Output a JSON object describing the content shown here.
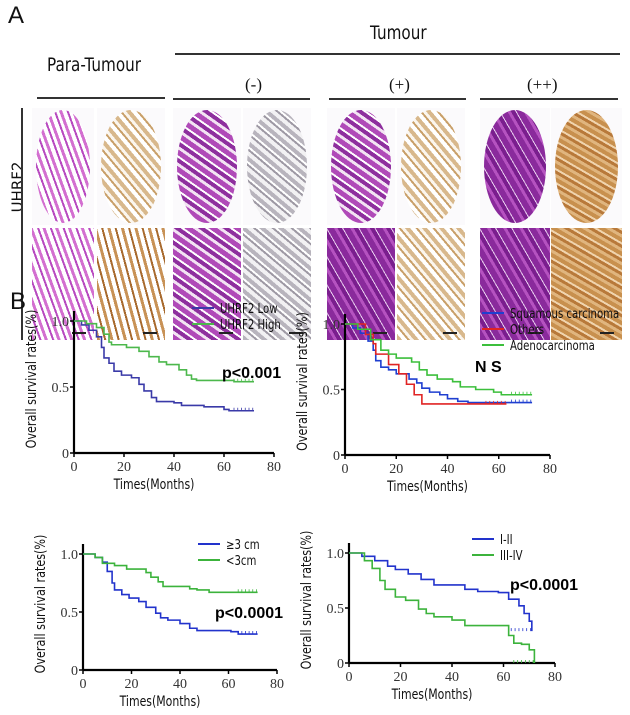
{
  "panel_a": {
    "letter": "A",
    "tumour_label": "Tumour",
    "para_tumour_label": "Para-Tumour",
    "groups": [
      "(-)",
      "(+)",
      "(++)"
    ],
    "row_label": "UHRF2",
    "colors": {
      "he_stain": "#a33fb0",
      "ihc_stain": "#c8975c"
    }
  },
  "panel_b": {
    "letter": "B"
  },
  "chart_data": [
    {
      "type": "line",
      "xlabel": "Times(Months)",
      "ylabel": "Overall survival rates(%)",
      "xlim": [
        0,
        80
      ],
      "ylim": [
        0,
        1.0
      ],
      "xticks": [
        "0",
        "20",
        "40",
        "60",
        "80"
      ],
      "yticks": [
        "0",
        "0.5",
        "1.0"
      ],
      "annotation": "p<0.001",
      "legend": "top-right",
      "series": [
        {
          "name": "UHRF2  Low",
          "color": "#3a3aa8",
          "points": [
            [
              0,
              1
            ],
            [
              3,
              0.97
            ],
            [
              6,
              0.93
            ],
            [
              9,
              0.88
            ],
            [
              11,
              0.8
            ],
            [
              12,
              0.72
            ],
            [
              14,
              0.68
            ],
            [
              16,
              0.62
            ],
            [
              19,
              0.59
            ],
            [
              23,
              0.57
            ],
            [
              26,
              0.52
            ],
            [
              28,
              0.47
            ],
            [
              31,
              0.42
            ],
            [
              33,
              0.39
            ],
            [
              40,
              0.38
            ],
            [
              43,
              0.36
            ],
            [
              52,
              0.35
            ],
            [
              60,
              0.33
            ],
            [
              62,
              0.32
            ],
            [
              72,
              0.32
            ]
          ]
        },
        {
          "name": "UHRF2  High",
          "color": "#4cb84c",
          "points": [
            [
              0,
              1
            ],
            [
              5,
              0.98
            ],
            [
              9,
              0.95
            ],
            [
              12,
              0.9
            ],
            [
              14,
              0.84
            ],
            [
              15,
              0.82
            ],
            [
              21,
              0.8
            ],
            [
              26,
              0.77
            ],
            [
              30,
              0.73
            ],
            [
              34,
              0.69
            ],
            [
              37,
              0.67
            ],
            [
              42,
              0.63
            ],
            [
              45,
              0.59
            ],
            [
              47,
              0.56
            ],
            [
              49,
              0.55
            ],
            [
              64,
              0.54
            ],
            [
              72,
              0.54
            ]
          ]
        }
      ]
    },
    {
      "type": "line",
      "xlabel": "Times(Months)",
      "ylabel": "Overall survival rates(%)",
      "xlim": [
        0,
        80
      ],
      "ylim": [
        0,
        1.0
      ],
      "xticks": [
        "0",
        "20",
        "40",
        "60",
        "80"
      ],
      "yticks": [
        "0",
        "0.5",
        "1.0"
      ],
      "annotation": "N S",
      "legend": "top-right",
      "series": [
        {
          "name": "Squamous carcinoma",
          "color": "#1f3fd0",
          "points": [
            [
              0,
              1
            ],
            [
              3,
              0.97
            ],
            [
              6,
              0.93
            ],
            [
              9,
              0.87
            ],
            [
              11,
              0.8
            ],
            [
              12,
              0.72
            ],
            [
              14,
              0.67
            ],
            [
              17,
              0.65
            ],
            [
              20,
              0.62
            ],
            [
              25,
              0.58
            ],
            [
              28,
              0.55
            ],
            [
              30,
              0.51
            ],
            [
              33,
              0.48
            ],
            [
              37,
              0.46
            ],
            [
              40,
              0.43
            ],
            [
              44,
              0.41
            ],
            [
              48,
              0.4
            ],
            [
              73,
              0.4
            ]
          ]
        },
        {
          "name": "Others",
          "color": "#e02424",
          "points": [
            [
              0,
              1
            ],
            [
              8,
              0.92
            ],
            [
              11,
              0.85
            ],
            [
              12,
              0.77
            ],
            [
              17,
              0.69
            ],
            [
              21,
              0.62
            ],
            [
              24,
              0.54
            ],
            [
              27,
              0.46
            ],
            [
              30,
              0.39
            ],
            [
              63,
              0.39
            ]
          ]
        },
        {
          "name": "Adenocarcinoma",
          "color": "#3cbf3c",
          "points": [
            [
              0,
              1
            ],
            [
              5,
              0.96
            ],
            [
              10,
              0.88
            ],
            [
              14,
              0.8
            ],
            [
              17,
              0.77
            ],
            [
              20,
              0.74
            ],
            [
              26,
              0.71
            ],
            [
              29,
              0.65
            ],
            [
              32,
              0.61
            ],
            [
              36,
              0.58
            ],
            [
              42,
              0.56
            ],
            [
              45,
              0.52
            ],
            [
              51,
              0.5
            ],
            [
              58,
              0.48
            ],
            [
              61,
              0.46
            ],
            [
              73,
              0.46
            ]
          ]
        }
      ]
    },
    {
      "type": "line",
      "xlabel": "Times(Months)",
      "ylabel": "Overall survival rates(%)",
      "xlim": [
        0,
        80
      ],
      "ylim": [
        0,
        1.0
      ],
      "xticks": [
        "0",
        "20",
        "40",
        "60",
        "80"
      ],
      "yticks": [
        "0",
        "0.5",
        "1.0"
      ],
      "annotation": "p<0.0001",
      "legend": "top-right",
      "series": [
        {
          "name": "≥3 cm",
          "color": "#2233cc",
          "points": [
            [
              0,
              1
            ],
            [
              5,
              0.97
            ],
            [
              8,
              0.93
            ],
            [
              10,
              0.85
            ],
            [
              12,
              0.75
            ],
            [
              13,
              0.69
            ],
            [
              16,
              0.65
            ],
            [
              19,
              0.62
            ],
            [
              23,
              0.59
            ],
            [
              26,
              0.54
            ],
            [
              30,
              0.49
            ],
            [
              32,
              0.45
            ],
            [
              35,
              0.43
            ],
            [
              40,
              0.4
            ],
            [
              44,
              0.36
            ],
            [
              47,
              0.34
            ],
            [
              59,
              0.34
            ],
            [
              61,
              0.33
            ],
            [
              64,
              0.31
            ],
            [
              72,
              0.31
            ]
          ]
        },
        {
          "name": "<3cm",
          "color": "#3cb33c",
          "points": [
            [
              0,
              1
            ],
            [
              5,
              0.97
            ],
            [
              8,
              0.92
            ],
            [
              13,
              0.9
            ],
            [
              18,
              0.87
            ],
            [
              26,
              0.84
            ],
            [
              28,
              0.8
            ],
            [
              31,
              0.76
            ],
            [
              33,
              0.72
            ],
            [
              44,
              0.7
            ],
            [
              47,
              0.69
            ],
            [
              52,
              0.67
            ],
            [
              72,
              0.67
            ]
          ]
        }
      ]
    },
    {
      "type": "line",
      "xlabel": "Times(Months)",
      "ylabel": "Overall survival rates(%)",
      "xlim": [
        0,
        80
      ],
      "ylim": [
        0,
        1.0
      ],
      "xticks": [
        "0",
        "20",
        "40",
        "60",
        "80"
      ],
      "yticks": [
        "0",
        "0.5",
        "1.0"
      ],
      "annotation": "p<0.0001",
      "legend": "top-right",
      "series": [
        {
          "name": "I-II",
          "color": "#2233cc",
          "points": [
            [
              0,
              1
            ],
            [
              5,
              0.97
            ],
            [
              10,
              0.93
            ],
            [
              15,
              0.88
            ],
            [
              18,
              0.85
            ],
            [
              23,
              0.81
            ],
            [
              28,
              0.76
            ],
            [
              33,
              0.71
            ],
            [
              38,
              0.71
            ],
            [
              45,
              0.67
            ],
            [
              50,
              0.65
            ],
            [
              58,
              0.64
            ],
            [
              62,
              0.58
            ],
            [
              66,
              0.52
            ],
            [
              68,
              0.45
            ],
            [
              70,
              0.38
            ],
            [
              71,
              0.29
            ]
          ]
        },
        {
          "name": "III-IV",
          "color": "#3cb33c",
          "points": [
            [
              0,
              1
            ],
            [
              6,
              0.93
            ],
            [
              9,
              0.86
            ],
            [
              12,
              0.75
            ],
            [
              14,
              0.67
            ],
            [
              18,
              0.6
            ],
            [
              22,
              0.57
            ],
            [
              27,
              0.49
            ],
            [
              30,
              0.45
            ],
            [
              33,
              0.42
            ],
            [
              40,
              0.39
            ],
            [
              45,
              0.34
            ],
            [
              59,
              0.34
            ],
            [
              62,
              0.25
            ],
            [
              64,
              0.18
            ],
            [
              67,
              0.17
            ],
            [
              70,
              0.12
            ],
            [
              72,
              0
            ]
          ]
        }
      ]
    }
  ]
}
